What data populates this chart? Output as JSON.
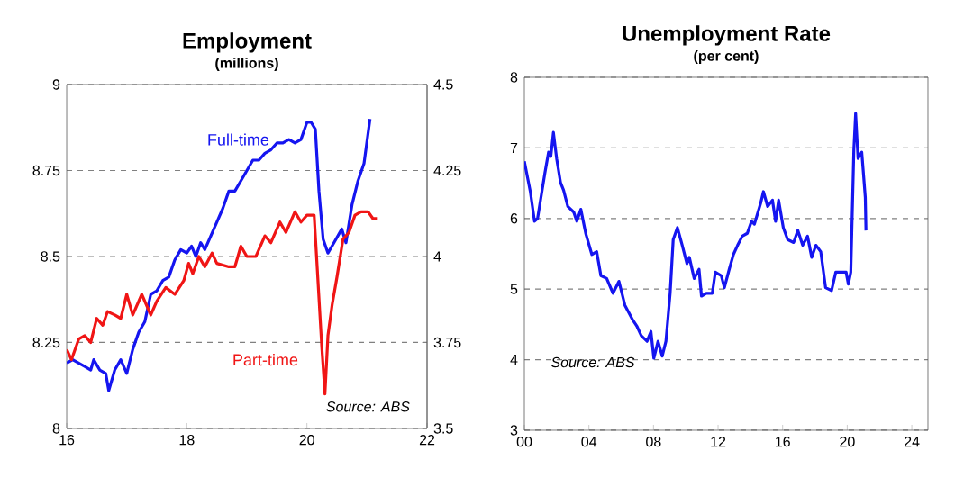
{
  "chart_data": [
    {
      "type": "line",
      "title": "Employment",
      "subtitle": "(millions)",
      "annotations": [
        "Source: ABS"
      ],
      "grid": "y",
      "xlim": [
        16,
        22
      ],
      "xticks": [
        16,
        18,
        20,
        22
      ],
      "ylim": [
        8,
        9
      ],
      "yticks": [
        8,
        8.25,
        8.5,
        8.75,
        9
      ],
      "y2lim": [
        3.5,
        4.5
      ],
      "y2ticks": [
        3.5,
        3.75,
        4,
        4.25,
        4.5
      ],
      "series": [
        {
          "name": "Full-time",
          "color": "#1515f0",
          "x": [
            16.0,
            16.1,
            16.3,
            16.4,
            16.45,
            16.55,
            16.65,
            16.7,
            16.8,
            16.9,
            17.0,
            17.1,
            17.2,
            17.3,
            17.4,
            17.5,
            17.6,
            17.7,
            17.8,
            17.9,
            18.0,
            18.08,
            18.15,
            18.23,
            18.3,
            18.4,
            18.5,
            18.6,
            18.7,
            18.8,
            18.9,
            19.0,
            19.1,
            19.2,
            19.3,
            19.4,
            19.5,
            19.6,
            19.7,
            19.8,
            19.9,
            20.0,
            20.07,
            20.14,
            20.2,
            20.27,
            20.35,
            20.45,
            20.58,
            20.65,
            20.75,
            20.85,
            20.95,
            21.05
          ],
          "values": [
            8.19,
            8.2,
            8.18,
            8.17,
            8.2,
            8.17,
            8.16,
            8.11,
            8.17,
            8.2,
            8.16,
            8.23,
            8.28,
            8.31,
            8.39,
            8.4,
            8.43,
            8.44,
            8.49,
            8.52,
            8.51,
            8.53,
            8.5,
            8.54,
            8.52,
            8.56,
            8.6,
            8.64,
            8.69,
            8.69,
            8.72,
            8.75,
            8.78,
            8.78,
            8.8,
            8.81,
            8.83,
            8.83,
            8.84,
            8.83,
            8.84,
            8.89,
            8.89,
            8.87,
            8.69,
            8.55,
            8.51,
            8.54,
            8.58,
            8.54,
            8.65,
            8.72,
            8.77,
            8.9
          ]
        },
        {
          "name": "Part-time",
          "color": "#f01515",
          "axis": "y2",
          "x": [
            16.0,
            16.08,
            16.2,
            16.3,
            16.4,
            16.5,
            16.6,
            16.68,
            16.8,
            16.9,
            17.0,
            17.1,
            17.25,
            17.4,
            17.5,
            17.65,
            17.8,
            17.95,
            18.03,
            18.1,
            18.2,
            18.3,
            18.42,
            18.5,
            18.7,
            18.8,
            18.9,
            19.0,
            19.15,
            19.3,
            19.4,
            19.55,
            19.65,
            19.8,
            19.9,
            20.0,
            20.12,
            20.18,
            20.25,
            20.3,
            20.35,
            20.42,
            20.5,
            20.6,
            20.7,
            20.8,
            20.9,
            21.02,
            21.1,
            21.18
          ],
          "values": [
            3.73,
            3.7,
            3.76,
            3.77,
            3.75,
            3.82,
            3.8,
            3.84,
            3.83,
            3.82,
            3.89,
            3.83,
            3.89,
            3.83,
            3.87,
            3.91,
            3.89,
            3.93,
            3.98,
            3.95,
            4.0,
            3.97,
            4.01,
            3.98,
            3.97,
            3.97,
            4.03,
            4.0,
            4.0,
            4.06,
            4.04,
            4.1,
            4.07,
            4.13,
            4.1,
            4.12,
            4.12,
            3.94,
            3.73,
            3.6,
            3.77,
            3.86,
            3.94,
            4.05,
            4.07,
            4.12,
            4.13,
            4.13,
            4.11,
            4.11
          ]
        }
      ]
    },
    {
      "type": "line",
      "title": "Unemployment Rate",
      "subtitle": "(per cent)",
      "annotations": [
        "Source: ABS"
      ],
      "grid": "y",
      "xlim": [
        0,
        25
      ],
      "xticks": [
        {
          "value": 0,
          "label": "00"
        },
        {
          "value": 4,
          "label": "04"
        },
        {
          "value": 8,
          "label": "08"
        },
        {
          "value": 12,
          "label": "12"
        },
        {
          "value": 16,
          "label": "16"
        },
        {
          "value": 20,
          "label": "20"
        },
        {
          "value": 24,
          "label": "24"
        }
      ],
      "ylim": [
        3,
        8
      ],
      "yticks": [
        3,
        4,
        5,
        6,
        7,
        8
      ],
      "series": [
        {
          "color": "#1515f0",
          "x": [
            0.0,
            0.37,
            0.63,
            0.82,
            1.0,
            1.27,
            1.5,
            1.64,
            1.8,
            2.0,
            2.24,
            2.43,
            2.69,
            3.06,
            3.25,
            3.5,
            3.8,
            4.18,
            4.48,
            4.74,
            5.1,
            5.49,
            5.86,
            6.23,
            6.72,
            6.98,
            7.24,
            7.6,
            7.84,
            8.02,
            8.28,
            8.54,
            8.77,
            9.03,
            9.22,
            9.48,
            9.78,
            10.07,
            10.22,
            10.52,
            10.82,
            10.97,
            11.27,
            11.64,
            11.83,
            12.2,
            12.39,
            12.69,
            12.95,
            13.21,
            13.5,
            13.81,
            14.07,
            14.25,
            14.63,
            14.81,
            15.07,
            15.37,
            15.56,
            15.75,
            16.04,
            16.31,
            16.68,
            16.94,
            17.24,
            17.54,
            17.8,
            18.06,
            18.36,
            18.66,
            19.03,
            19.29,
            19.59,
            19.93,
            20.07,
            20.22,
            20.41,
            20.52,
            20.67,
            20.9,
            21.12,
            21.16
          ],
          "values": [
            6.81,
            6.38,
            5.96,
            6.0,
            6.26,
            6.64,
            6.94,
            6.88,
            7.22,
            6.85,
            6.51,
            6.4,
            6.17,
            6.09,
            5.96,
            6.13,
            5.79,
            5.49,
            5.53,
            5.19,
            5.15,
            4.94,
            5.11,
            4.77,
            4.56,
            4.47,
            4.34,
            4.26,
            4.4,
            4.02,
            4.26,
            4.05,
            4.26,
            4.94,
            5.7,
            5.87,
            5.62,
            5.36,
            5.45,
            5.15,
            5.28,
            4.9,
            4.94,
            4.94,
            5.24,
            5.19,
            5.02,
            5.28,
            5.49,
            5.62,
            5.75,
            5.79,
            5.96,
            5.92,
            6.21,
            6.38,
            6.17,
            6.26,
            5.96,
            6.26,
            5.87,
            5.7,
            5.66,
            5.83,
            5.62,
            5.75,
            5.45,
            5.62,
            5.53,
            5.02,
            4.98,
            5.24,
            5.24,
            5.24,
            5.07,
            5.24,
            6.98,
            7.49,
            6.85,
            6.94,
            6.3,
            5.83
          ]
        }
      ]
    }
  ]
}
